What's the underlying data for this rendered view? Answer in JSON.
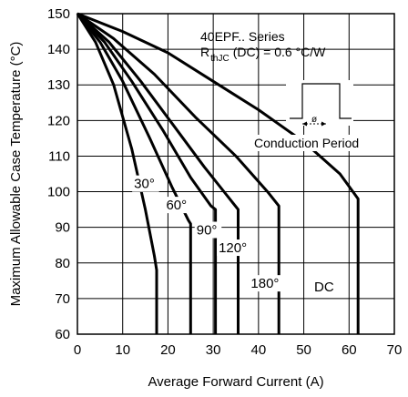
{
  "chart_data": {
    "type": "line",
    "title": "",
    "xlabel": "Average Forward Current (A)",
    "ylabel": "Maximum Allowable Case Temperature (°C)",
    "xlim": [
      0,
      70
    ],
    "ylim": [
      60,
      150
    ],
    "x_ticks": [
      "0",
      "10",
      "20",
      "30",
      "40",
      "50",
      "60",
      "70"
    ],
    "y_ticks": [
      "60",
      "70",
      "80",
      "90",
      "100",
      "110",
      "120",
      "130",
      "140",
      "150"
    ],
    "grid": true,
    "annotations": {
      "series_line": "40EPF.. Series",
      "rth_prefix": "R",
      "rth_sub": "thJC",
      "rth_suffix": "(DC) = 0.6 °C/W",
      "phi": "ø",
      "conduction": "Conduction Period"
    },
    "series": [
      {
        "name": "30°",
        "label": "30°",
        "x": [
          0,
          4,
          8,
          12,
          15,
          17,
          17.5,
          17.5
        ],
        "y": [
          150,
          142,
          130,
          112,
          95,
          82,
          78,
          60
        ]
      },
      {
        "name": "60°",
        "label": "60°",
        "x": [
          0,
          5,
          10,
          16,
          21,
          24.5,
          25,
          25
        ],
        "y": [
          150,
          142,
          131,
          115,
          101,
          92,
          91,
          60
        ]
      },
      {
        "name": "90°",
        "label": "90°",
        "x": [
          0,
          6,
          12,
          19,
          25,
          29.5,
          30.5,
          30.5
        ],
        "y": [
          150,
          142,
          131,
          117,
          104,
          96,
          95,
          60
        ]
      },
      {
        "name": "120°",
        "label": "120°",
        "x": [
          0,
          7,
          14,
          21,
          28,
          33,
          35.5,
          35.5
        ],
        "y": [
          150,
          142,
          131,
          119,
          107,
          99,
          95,
          60
        ]
      },
      {
        "name": "180°",
        "label": "180°",
        "x": [
          0,
          8,
          17,
          26,
          35,
          42,
          44.5,
          44.5
        ],
        "y": [
          150,
          143,
          133,
          121,
          110,
          100,
          96,
          60
        ]
      },
      {
        "name": "DC",
        "label": "DC",
        "x": [
          0,
          10,
          20,
          30,
          40,
          50,
          58,
          62,
          62
        ],
        "y": [
          150,
          145,
          139,
          131,
          123,
          114,
          105,
          98,
          60
        ]
      }
    ]
  }
}
